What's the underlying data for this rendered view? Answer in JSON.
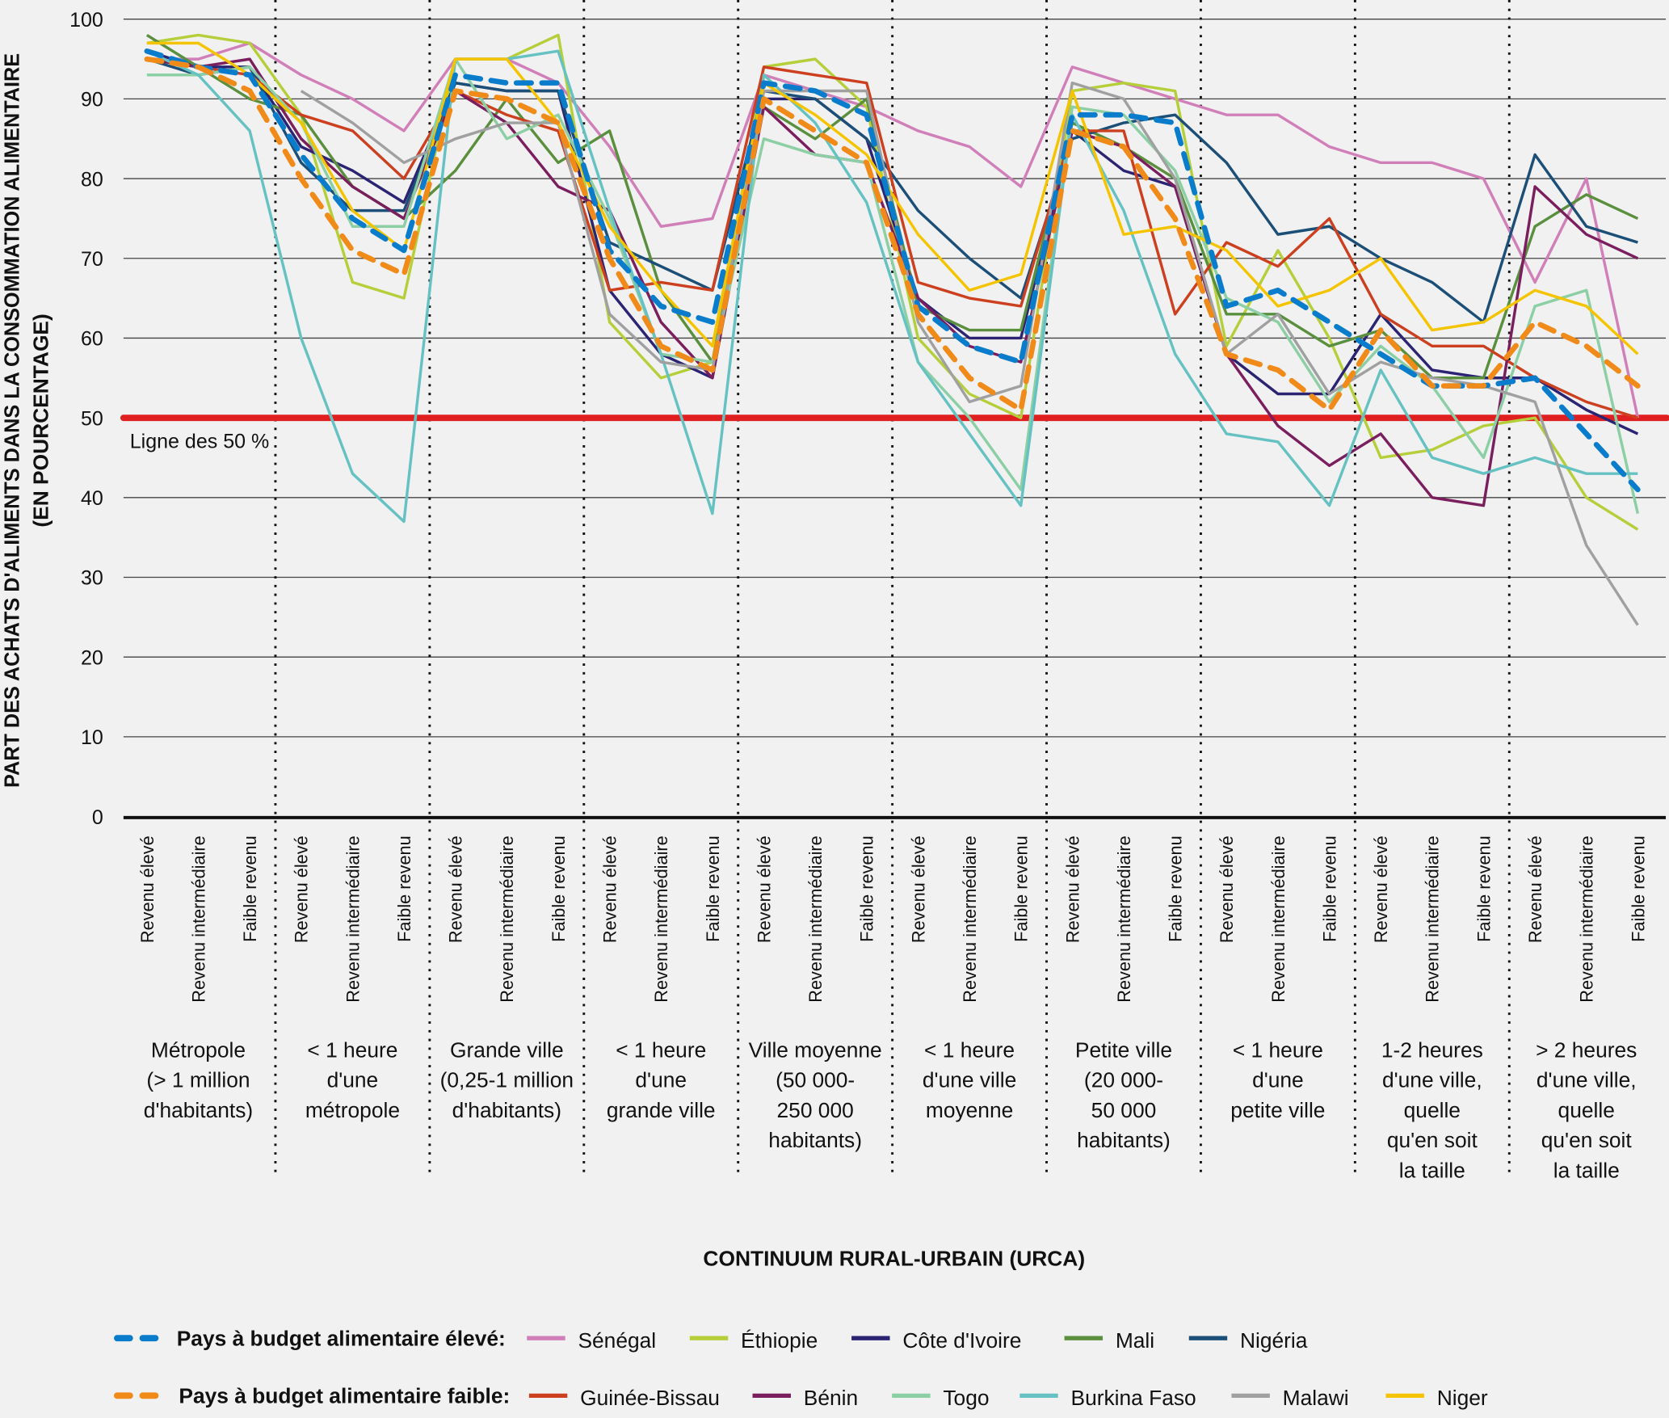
{
  "chart_data": {
    "type": "line",
    "title": "",
    "ylabel": [
      "PART DES ACHATS D'ALIMENTS DANS LA CONSOMMATION ALIMENTAIRE",
      "(EN POURCENTAGE)"
    ],
    "xlabel": "CONTINUUM RURAL-URBAIN (URCA)",
    "ylim": [
      0,
      100
    ],
    "yticks": [
      "0",
      "10",
      "20",
      "30",
      "40",
      "50",
      "60",
      "70",
      "80",
      "90",
      "100"
    ],
    "grid": true,
    "reference_line": {
      "value": 50,
      "label": "Ligne des 50 %",
      "color": "#e02020"
    },
    "income_levels": [
      "Revenu élevé",
      "Revenu intermédiaire",
      "Faible revenu"
    ],
    "groups": [
      [
        "Métropole",
        "(> 1 million",
        "d'habitants)"
      ],
      [
        "< 1 heure",
        "d'une",
        "métropole"
      ],
      [
        "Grande ville",
        "(0,25-1 million",
        "d'habitants)"
      ],
      [
        "< 1 heure",
        "d'une",
        "grande ville"
      ],
      [
        "Ville moyenne",
        "(50 000-",
        "250 000",
        "habitants)"
      ],
      [
        "< 1 heure",
        "d'une ville",
        "moyenne"
      ],
      [
        "Petite ville",
        "(20 000-",
        "50 000",
        "habitants)"
      ],
      [
        "< 1 heure",
        "d'une",
        "petite ville"
      ],
      [
        "1-2 heures",
        "d'une ville,",
        "quelle",
        "qu'en soit",
        "la taille"
      ],
      [
        "> 2 heures",
        "d'une ville,",
        "quelle",
        "qu'en soit",
        "la taille"
      ]
    ],
    "legend": {
      "placement": "bottom",
      "high_label": "Pays à budget alimentaire élevé:",
      "low_label": "Pays à budget alimentaire faible:"
    },
    "series": [
      {
        "name": "Pays à budget alimentaire élevé",
        "group": "high",
        "dashed": true,
        "color": "#0a7ccc",
        "values": [
          96,
          94,
          93,
          83,
          75,
          71,
          93,
          92,
          92,
          71,
          64,
          62,
          92,
          91,
          88,
          64,
          59,
          57,
          88,
          88,
          87,
          64,
          66,
          62,
          58,
          54,
          54,
          55,
          48,
          41
        ]
      },
      {
        "name": "Pays à budget alimentaire faible",
        "group": "low",
        "dashed": true,
        "color": "#f08a18",
        "values": [
          95,
          94,
          91,
          80,
          71,
          68,
          91,
          90,
          87,
          70,
          59,
          56,
          90,
          86,
          82,
          63,
          55,
          51,
          86,
          84,
          75,
          58,
          56,
          51,
          61,
          54,
          54,
          62,
          59,
          54
        ]
      },
      {
        "name": "Sénégal",
        "group": "high",
        "color": "#d17fb8",
        "values": [
          95,
          95,
          97,
          93,
          90,
          86,
          95,
          95,
          92,
          84,
          74,
          75,
          93,
          91,
          89,
          86,
          84,
          79,
          94,
          92,
          90,
          88,
          88,
          84,
          82,
          82,
          80,
          67,
          80,
          50
        ]
      },
      {
        "name": "Éthiopie",
        "group": "high",
        "color": "#b5cf3a",
        "values": [
          97,
          98,
          97,
          88,
          67,
          65,
          95,
          95,
          98,
          62,
          55,
          57,
          94,
          95,
          89,
          60,
          53,
          50,
          91,
          92,
          91,
          59,
          71,
          60,
          45,
          46,
          49,
          50,
          40,
          36
        ]
      },
      {
        "name": "Côte d'Ivoire",
        "group": "high",
        "color": "#2b2472",
        "values": [
          96,
          94,
          94,
          84,
          81,
          77,
          92,
          91,
          91,
          66,
          58,
          55,
          90,
          90,
          85,
          65,
          60,
          60,
          86,
          81,
          79,
          58,
          53,
          53,
          63,
          56,
          55,
          55,
          51,
          48
        ]
      },
      {
        "name": "Mali",
        "group": "high",
        "color": "#5a8f3e",
        "values": [
          98,
          94,
          90,
          88,
          79,
          75,
          81,
          90,
          82,
          86,
          66,
          57,
          89,
          85,
          90,
          64,
          61,
          61,
          87,
          84,
          80,
          63,
          63,
          59,
          61,
          55,
          55,
          74,
          78,
          75
        ]
      },
      {
        "name": "Nigéria",
        "group": "high",
        "color": "#1c4f77",
        "values": [
          95,
          93,
          94,
          82,
          76,
          76,
          92,
          91,
          91,
          72,
          69,
          66,
          91,
          90,
          85,
          76,
          70,
          65,
          85,
          87,
          88,
          82,
          73,
          74,
          70,
          67,
          62,
          83,
          74,
          72
        ]
      },
      {
        "name": "Guinée-Bissau",
        "group": "low",
        "color": "#cc4020",
        "values": [
          95,
          94,
          93,
          88,
          86,
          80,
          91,
          88,
          86,
          66,
          67,
          66,
          94,
          93,
          92,
          67,
          65,
          64,
          86,
          86,
          63,
          72,
          69,
          75,
          63,
          59,
          59,
          55,
          52,
          50
        ]
      },
      {
        "name": "Bénin",
        "group": "low",
        "color": "#7a1e5e",
        "values": [
          95,
          94,
          95,
          85,
          79,
          75,
          91,
          87,
          79,
          76,
          62,
          55,
          89,
          83,
          82,
          65,
          59,
          57,
          86,
          84,
          79,
          58,
          49,
          44,
          48,
          40,
          39,
          79,
          73,
          70
        ]
      },
      {
        "name": "Togo",
        "group": "low",
        "color": "#8ccfa5",
        "values": [
          93,
          93,
          94,
          87,
          74,
          74,
          95,
          85,
          88,
          75,
          58,
          57,
          85,
          83,
          82,
          57,
          50,
          41,
          89,
          88,
          81,
          65,
          62,
          52,
          59,
          54,
          45,
          64,
          66,
          38
        ]
      },
      {
        "name": "Burkina Faso",
        "group": "low",
        "color": "#66c2c2",
        "values": [
          96,
          93,
          86,
          60,
          43,
          37,
          95,
          95,
          96,
          76,
          58,
          38,
          93,
          87,
          77,
          57,
          48,
          39,
          88,
          76,
          58,
          48,
          47,
          39,
          56,
          45,
          43,
          45,
          43,
          43
        ]
      },
      {
        "name": "Malawi",
        "group": "low",
        "color": "#a0a0a0",
        "values": [
          null,
          null,
          null,
          91,
          87,
          82,
          85,
          87,
          87,
          63,
          57,
          56,
          91,
          91,
          91,
          62,
          52,
          54,
          92,
          90,
          80,
          58,
          63,
          53,
          57,
          55,
          54,
          52,
          34,
          24
        ]
      },
      {
        "name": "Niger",
        "group": "low",
        "color": "#f5c400",
        "values": [
          97,
          97,
          93,
          87,
          76,
          71,
          95,
          95,
          87,
          74,
          66,
          59,
          92,
          88,
          83,
          73,
          66,
          68,
          91,
          73,
          74,
          71,
          64,
          66,
          70,
          61,
          62,
          66,
          64,
          58
        ]
      }
    ]
  }
}
